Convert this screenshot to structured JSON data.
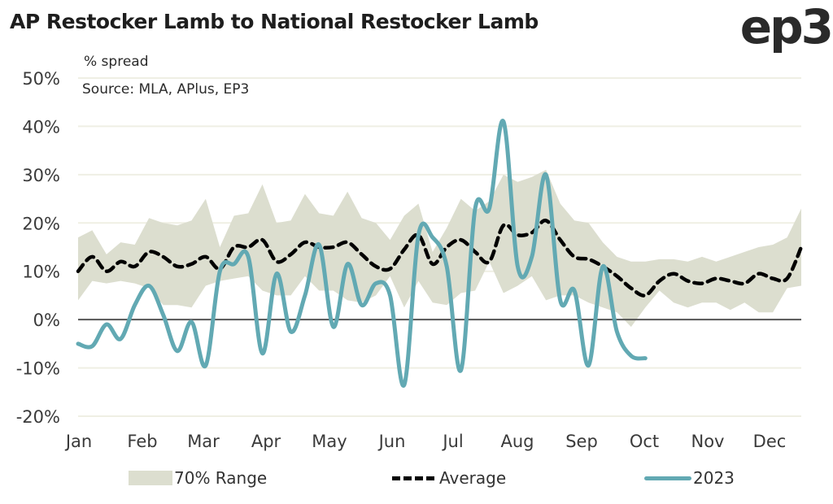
{
  "header": {
    "title": "AP Restocker Lamb to National Restocker Lamb",
    "logo": "ep3",
    "subtitle": "% spread",
    "source": "Source: MLA, APlus, EP3"
  },
  "colors": {
    "range": "#dcdecf",
    "average": "#000000",
    "series_2023": "#62a9b3",
    "grid": "#efefe4",
    "zero_line": "#555555"
  },
  "chart_data": {
    "type": "line",
    "title": "AP Restocker Lamb to National Restocker Lamb",
    "xlabel": "",
    "ylabel": "% spread",
    "ylim": [
      -20,
      50
    ],
    "yticks": [
      -20,
      -10,
      0,
      10,
      20,
      30,
      40,
      50
    ],
    "ytick_labels": [
      "-20%",
      "-10%",
      "0%",
      "10%",
      "20%",
      "30%",
      "40%",
      "50%"
    ],
    "x_categories": [
      "Jan",
      "Feb",
      "Mar",
      "Apr",
      "May",
      "Jun",
      "Jul",
      "Aug",
      "Sep",
      "Oct",
      "Nov",
      "Dec"
    ],
    "x_unit": "week of year",
    "grid": true,
    "legend_position": "bottom",
    "legend": [
      "70% Range",
      "Average",
      "2023"
    ],
    "range_upper": [
      17,
      18.5,
      13.5,
      16,
      15.5,
      21,
      20,
      19.5,
      20.5,
      25,
      15,
      21.5,
      22,
      28,
      20,
      20.5,
      26,
      22,
      21.5,
      26.5,
      21,
      20,
      16.5,
      21.5,
      24,
      14,
      19,
      25,
      22.5,
      24.5,
      30,
      28.5,
      29.5,
      31,
      24,
      20.5,
      20,
      16,
      13,
      12,
      12,
      12.5,
      12.5,
      12,
      13,
      12,
      13,
      14,
      15,
      15.5,
      17,
      23
    ],
    "range_lower": [
      4,
      8,
      7.5,
      8,
      7.5,
      6.5,
      3,
      3,
      2.5,
      7,
      8,
      8.5,
      9,
      6,
      5,
      5,
      9,
      6,
      6,
      4,
      3.5,
      5,
      9,
      2.5,
      8,
      3.5,
      3,
      5.5,
      6,
      12,
      5.5,
      7,
      9,
      4,
      5,
      5,
      3.5,
      2.5,
      1.5,
      -1.5,
      2.5,
      6,
      3.5,
      2.5,
      3.5,
      3.5,
      2,
      3.5,
      1.5,
      1.5,
      6.5,
      7
    ],
    "series": [
      {
        "name": "Average",
        "style": "dashed",
        "values": [
          10,
          13,
          10,
          12,
          11,
          14,
          13,
          11,
          11.5,
          13,
          10.5,
          15,
          15,
          16.5,
          12,
          13.5,
          16,
          15,
          15,
          16,
          13.5,
          11,
          10.5,
          14.5,
          17.5,
          11.5,
          15,
          16.5,
          14,
          12,
          19.5,
          17.5,
          18,
          20.5,
          16.5,
          13,
          12.5,
          11,
          9,
          6.5,
          5,
          8,
          9.5,
          8,
          7.5,
          8.5,
          8,
          7.5,
          9.5,
          8.5,
          8.5,
          15
        ]
      },
      {
        "name": "2023",
        "style": "solid",
        "values": [
          -5,
          -5.5,
          -1,
          -4,
          3,
          7,
          1,
          -6.5,
          -0.5,
          -9.5,
          10,
          11.5,
          13,
          -7,
          9.5,
          -2.5,
          5,
          15.5,
          -1.5,
          11.5,
          3,
          7.5,
          5,
          -13.5,
          17.5,
          17,
          11,
          -10.5,
          23,
          23,
          41,
          11,
          13,
          30,
          4,
          6,
          -9.5,
          11,
          -2.5,
          -7.5,
          -8
        ]
      }
    ]
  },
  "legend": {
    "range_label": "70% Range",
    "average_label": "Average",
    "series_2023_label": "2023"
  }
}
